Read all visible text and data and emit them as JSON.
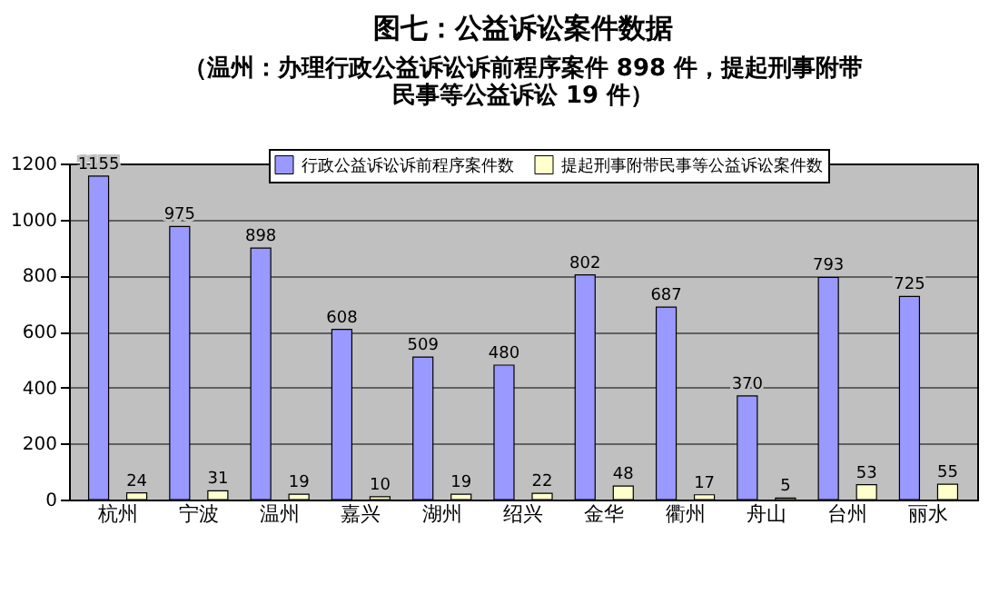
{
  "chart_data": {
    "type": "bar",
    "title": "图七：公益诉讼案件数据",
    "subtitle": "（温州：办理行政公益诉讼诉前程序案件 898 件，提起刑事附带民事等公益诉讼 19 件）",
    "categories": [
      "杭州",
      "宁波",
      "温州",
      "嘉兴",
      "湖州",
      "绍兴",
      "金华",
      "衢州",
      "舟山",
      "台州",
      "丽水"
    ],
    "series": [
      {
        "name": "行政公益诉讼诉前程序案件数",
        "color": "#9999ff",
        "values": [
          1155,
          975,
          898,
          608,
          509,
          480,
          802,
          687,
          370,
          793,
          725
        ]
      },
      {
        "name": "提起刑事附带民事等公益诉讼案件数",
        "color": "#ffffcc",
        "values": [
          24,
          31,
          19,
          10,
          19,
          22,
          48,
          17,
          5,
          53,
          55
        ]
      }
    ],
    "ylim": [
      0,
      1200
    ],
    "yticks": [
      0,
      200,
      400,
      600,
      800,
      1000,
      1200
    ],
    "grid": "y",
    "legend": "top",
    "data_labels": true
  }
}
